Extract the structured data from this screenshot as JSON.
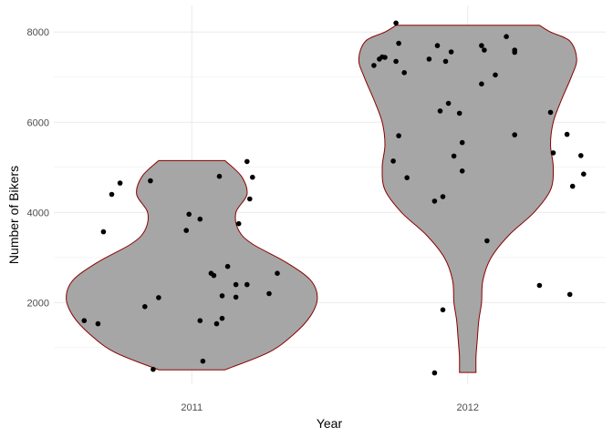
{
  "chart_data": {
    "type": "violin",
    "xlabel": "Year",
    "ylabel": "Number of Bikers",
    "categories": [
      "2011",
      "2012"
    ],
    "y_ticks": [
      2000,
      4000,
      6000,
      8000
    ],
    "ylim": [
      190,
      8590
    ],
    "grid": true,
    "colors": {
      "violin_fill": "#a6a6a6",
      "violin_outline": "#8b0000",
      "point": "#000000",
      "grid": "#ebebeb",
      "text": "#4d4d4d"
    },
    "violins": [
      {
        "category": "2011",
        "outline": [
          {
            "y": 510,
            "half_width": 0.12
          },
          {
            "y": 900,
            "half_width": 0.28
          },
          {
            "y": 1300,
            "half_width": 0.37
          },
          {
            "y": 1700,
            "half_width": 0.43
          },
          {
            "y": 2100,
            "half_width": 0.455
          },
          {
            "y": 2500,
            "half_width": 0.43
          },
          {
            "y": 2900,
            "half_width": 0.34
          },
          {
            "y": 3300,
            "half_width": 0.22
          },
          {
            "y": 3600,
            "half_width": 0.17
          },
          {
            "y": 4000,
            "half_width": 0.16
          },
          {
            "y": 4400,
            "half_width": 0.2
          },
          {
            "y": 4800,
            "half_width": 0.18
          },
          {
            "y": 5150,
            "half_width": 0.12
          }
        ]
      },
      {
        "category": "2012",
        "outline": [
          {
            "y": 450,
            "half_width": 0.03
          },
          {
            "y": 800,
            "half_width": 0.03
          },
          {
            "y": 1200,
            "half_width": 0.035
          },
          {
            "y": 1600,
            "half_width": 0.04
          },
          {
            "y": 2000,
            "half_width": 0.05
          },
          {
            "y": 2500,
            "half_width": 0.055
          },
          {
            "y": 3000,
            "half_width": 0.085
          },
          {
            "y": 3500,
            "half_width": 0.15
          },
          {
            "y": 4000,
            "half_width": 0.24
          },
          {
            "y": 4500,
            "half_width": 0.3
          },
          {
            "y": 5000,
            "half_width": 0.31
          },
          {
            "y": 5500,
            "half_width": 0.3
          },
          {
            "y": 6000,
            "half_width": 0.31
          },
          {
            "y": 6500,
            "half_width": 0.34
          },
          {
            "y": 7000,
            "half_width": 0.375
          },
          {
            "y": 7400,
            "half_width": 0.395
          },
          {
            "y": 7800,
            "half_width": 0.37
          },
          {
            "y": 8000,
            "half_width": 0.3
          },
          {
            "y": 8150,
            "half_width": 0.26
          }
        ]
      }
    ],
    "points": [
      {
        "year": "2011",
        "x": -0.39,
        "y": 1600
      },
      {
        "year": "2011",
        "x": -0.34,
        "y": 1530
      },
      {
        "year": "2011",
        "x": -0.32,
        "y": 3570
      },
      {
        "year": "2011",
        "x": -0.29,
        "y": 4400
      },
      {
        "year": "2011",
        "x": -0.26,
        "y": 4650
      },
      {
        "year": "2011",
        "x": -0.17,
        "y": 1910
      },
      {
        "year": "2011",
        "x": -0.15,
        "y": 4700
      },
      {
        "year": "2011",
        "x": -0.14,
        "y": 520
      },
      {
        "year": "2011",
        "x": -0.12,
        "y": 2110
      },
      {
        "year": "2011",
        "x": -0.02,
        "y": 3600
      },
      {
        "year": "2011",
        "x": -0.01,
        "y": 3960
      },
      {
        "year": "2011",
        "x": 0.03,
        "y": 1600
      },
      {
        "year": "2011",
        "x": 0.03,
        "y": 3850
      },
      {
        "year": "2011",
        "x": 0.04,
        "y": 700
      },
      {
        "year": "2011",
        "x": 0.07,
        "y": 2650
      },
      {
        "year": "2011",
        "x": 0.08,
        "y": 2600
      },
      {
        "year": "2011",
        "x": 0.09,
        "y": 1530
      },
      {
        "year": "2011",
        "x": 0.1,
        "y": 4800
      },
      {
        "year": "2011",
        "x": 0.11,
        "y": 1650
      },
      {
        "year": "2011",
        "x": 0.11,
        "y": 2150
      },
      {
        "year": "2011",
        "x": 0.13,
        "y": 2800
      },
      {
        "year": "2011",
        "x": 0.16,
        "y": 2400
      },
      {
        "year": "2011",
        "x": 0.16,
        "y": 2120
      },
      {
        "year": "2011",
        "x": 0.17,
        "y": 3750
      },
      {
        "year": "2011",
        "x": 0.2,
        "y": 2400
      },
      {
        "year": "2011",
        "x": 0.2,
        "y": 5130
      },
      {
        "year": "2011",
        "x": 0.21,
        "y": 4300
      },
      {
        "year": "2011",
        "x": 0.22,
        "y": 4780
      },
      {
        "year": "2011",
        "x": 0.28,
        "y": 2200
      },
      {
        "year": "2011",
        "x": 0.31,
        "y": 2650
      },
      {
        "year": "2012",
        "x": -0.34,
        "y": 7260
      },
      {
        "year": "2012",
        "x": -0.32,
        "y": 7400
      },
      {
        "year": "2012",
        "x": -0.31,
        "y": 7450
      },
      {
        "year": "2012",
        "x": -0.3,
        "y": 7440
      },
      {
        "year": "2012",
        "x": -0.27,
        "y": 5140
      },
      {
        "year": "2012",
        "x": -0.26,
        "y": 7350
      },
      {
        "year": "2012",
        "x": -0.26,
        "y": 8200
      },
      {
        "year": "2012",
        "x": -0.25,
        "y": 7750
      },
      {
        "year": "2012",
        "x": -0.25,
        "y": 5700
      },
      {
        "year": "2012",
        "x": -0.23,
        "y": 7100
      },
      {
        "year": "2012",
        "x": -0.22,
        "y": 4770
      },
      {
        "year": "2012",
        "x": -0.14,
        "y": 7400
      },
      {
        "year": "2012",
        "x": -0.12,
        "y": 4250
      },
      {
        "year": "2012",
        "x": -0.12,
        "y": 440
      },
      {
        "year": "2012",
        "x": -0.11,
        "y": 7700
      },
      {
        "year": "2012",
        "x": -0.1,
        "y": 6250
      },
      {
        "year": "2012",
        "x": -0.09,
        "y": 4350
      },
      {
        "year": "2012",
        "x": -0.09,
        "y": 1840
      },
      {
        "year": "2012",
        "x": -0.08,
        "y": 7350
      },
      {
        "year": "2012",
        "x": -0.07,
        "y": 6420
      },
      {
        "year": "2012",
        "x": -0.06,
        "y": 7560
      },
      {
        "year": "2012",
        "x": -0.05,
        "y": 5250
      },
      {
        "year": "2012",
        "x": -0.03,
        "y": 6200
      },
      {
        "year": "2012",
        "x": -0.02,
        "y": 5550
      },
      {
        "year": "2012",
        "x": -0.02,
        "y": 4920
      },
      {
        "year": "2012",
        "x": 0.05,
        "y": 7700
      },
      {
        "year": "2012",
        "x": 0.05,
        "y": 6850
      },
      {
        "year": "2012",
        "x": 0.06,
        "y": 7600
      },
      {
        "year": "2012",
        "x": 0.07,
        "y": 3370
      },
      {
        "year": "2012",
        "x": 0.1,
        "y": 7050
      },
      {
        "year": "2012",
        "x": 0.14,
        "y": 7900
      },
      {
        "year": "2012",
        "x": 0.17,
        "y": 7550
      },
      {
        "year": "2012",
        "x": 0.17,
        "y": 7600
      },
      {
        "year": "2012",
        "x": 0.17,
        "y": 5720
      },
      {
        "year": "2012",
        "x": 0.26,
        "y": 2380
      },
      {
        "year": "2012",
        "x": 0.3,
        "y": 6220
      },
      {
        "year": "2012",
        "x": 0.31,
        "y": 5320
      },
      {
        "year": "2012",
        "x": 0.36,
        "y": 5730
      },
      {
        "year": "2012",
        "x": 0.37,
        "y": 2180
      },
      {
        "year": "2012",
        "x": 0.38,
        "y": 4580
      },
      {
        "year": "2012",
        "x": 0.41,
        "y": 5260
      },
      {
        "year": "2012",
        "x": 0.42,
        "y": 4850
      }
    ]
  }
}
